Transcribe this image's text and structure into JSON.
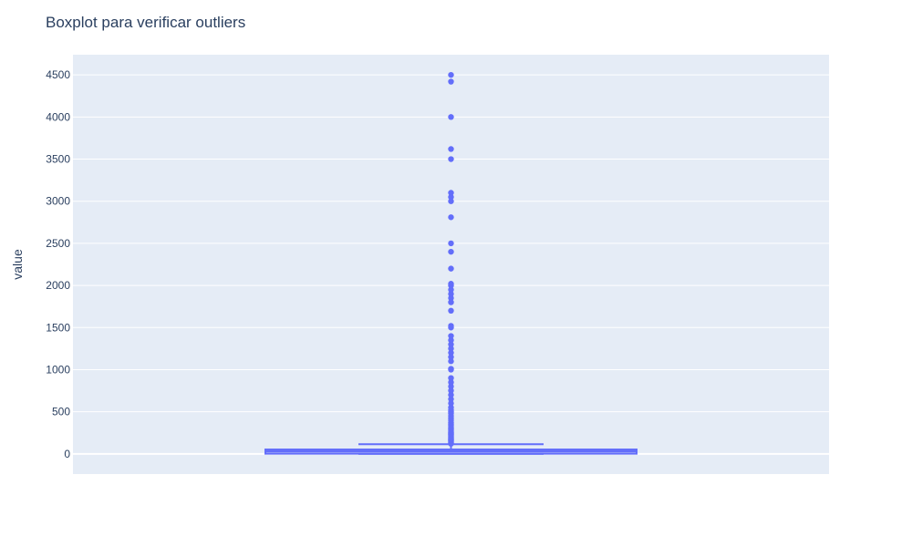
{
  "chart_data": {
    "type": "box",
    "title": "Boxplot para verificar outliers",
    "xlabel": "",
    "ylabel": "value",
    "ylim": [
      -240,
      4740
    ],
    "yticks": [
      0,
      500,
      1000,
      1500,
      2000,
      2500,
      3000,
      3500,
      4000,
      4500
    ],
    "grid": true,
    "color": "#636efa",
    "plot_bg": "#e5ecf6",
    "box": {
      "lowerfence": 0,
      "q1": 2,
      "median": 30,
      "q3": 52,
      "upperfence": 115,
      "mean": 50
    },
    "outliers": [
      120,
      130,
      140,
      150,
      160,
      170,
      180,
      190,
      200,
      210,
      220,
      230,
      240,
      250,
      260,
      275,
      290,
      300,
      320,
      340,
      350,
      370,
      400,
      420,
      450,
      480,
      500,
      520,
      550,
      600,
      650,
      700,
      750,
      800,
      850,
      900,
      1000,
      1010,
      1100,
      1150,
      1200,
      1250,
      1300,
      1350,
      1400,
      1500,
      1520,
      1700,
      1800,
      1850,
      1900,
      1950,
      2000,
      2020,
      2200,
      2400,
      2500,
      2810,
      3000,
      3050,
      3100,
      3500,
      3620,
      4000,
      4420,
      4500
    ]
  }
}
